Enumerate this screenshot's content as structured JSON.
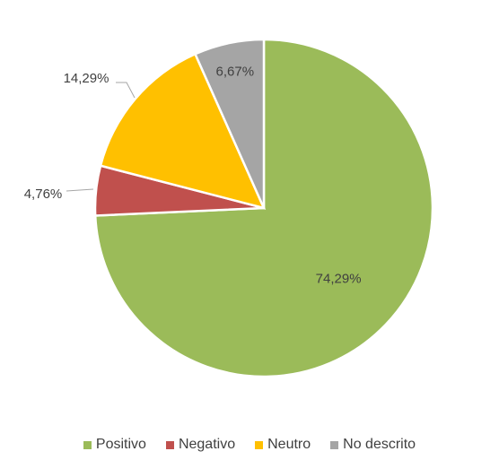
{
  "chart_data": {
    "type": "pie",
    "title": "",
    "categories": [
      "Positivo",
      "Negativo",
      "Neutro",
      "No descrito"
    ],
    "values": [
      74.29,
      4.76,
      14.29,
      6.67
    ],
    "labels": [
      "74,29%",
      "4,76%",
      "14,29%",
      "6,67%"
    ],
    "colors": [
      "#9bbb59",
      "#c0504d",
      "#ffc000",
      "#a5a5a5"
    ],
    "start_angle_deg": 0,
    "direction": "clockwise",
    "legend_position": "bottom"
  }
}
